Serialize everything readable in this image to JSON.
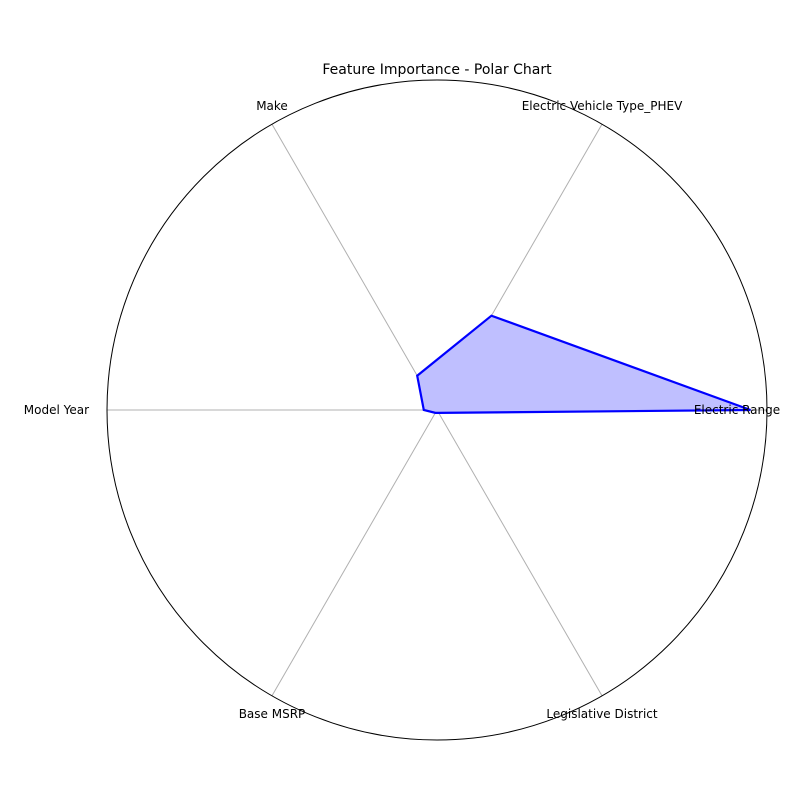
{
  "chart_data": {
    "type": "radar",
    "title": "Feature Importance - Polar Chart",
    "categories": [
      "Electric Range",
      "Electric Vehicle Type_PHEV",
      "Make",
      "Model Year",
      "Base MSRP",
      "Legislative District"
    ],
    "series": [
      {
        "name": "",
        "values": [
          0.95,
          0.33,
          0.12,
          0.04,
          0.01,
          0.01
        ]
      }
    ],
    "rlim": [
      0,
      1
    ],
    "grid": true,
    "radial_tick_labels": false,
    "colors": {
      "line": "#0000ff",
      "fill": "#bfbfff",
      "grid": "#b0b0b0",
      "frame": "#000000"
    }
  }
}
